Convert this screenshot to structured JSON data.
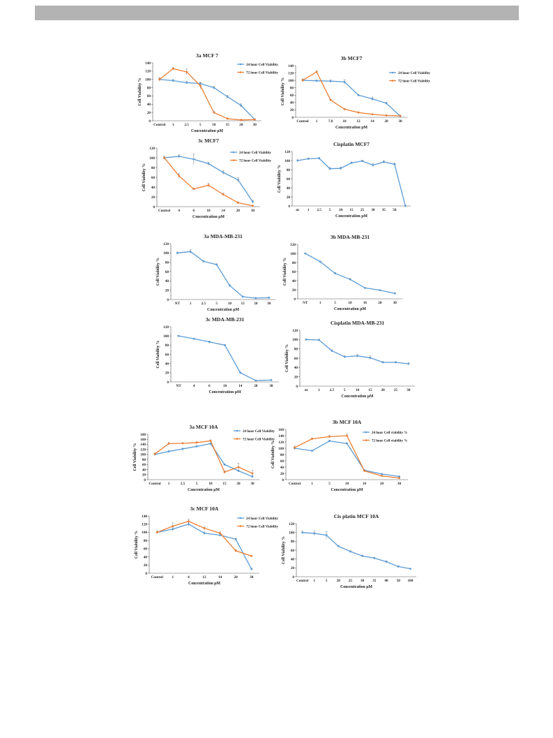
{
  "colors": {
    "blue": "#5b9bd5",
    "orange": "#ed7d31"
  },
  "chart_data": [
    {
      "type": "line",
      "title": "3a MCF 7",
      "xlabel": "Concentration μM",
      "ylabel": "Cell Viability %",
      "ylim": [
        0,
        140
      ],
      "yticks": [
        0,
        20,
        40,
        60,
        80,
        100,
        120,
        140
      ],
      "categories": [
        "Control",
        "1",
        "2.5",
        "5",
        "10",
        "15",
        "20",
        "30"
      ],
      "legend_position": "top-right",
      "series": [
        {
          "name": "24 hour Cell Viability",
          "color": "#5b9bd5",
          "values": [
            100,
            97,
            92,
            90,
            80,
            58,
            37,
            3
          ],
          "errors": [
            3,
            3,
            3,
            3,
            3,
            4,
            4,
            2
          ]
        },
        {
          "name": "72 hour Cell Viability",
          "color": "#ed7d31",
          "values": [
            100,
            126,
            118,
            85,
            20,
            5,
            2,
            3
          ],
          "errors": [
            4,
            3,
            7,
            8,
            3,
            2,
            2,
            2
          ]
        }
      ]
    },
    {
      "type": "line",
      "title": "3b MCF7",
      "xlabel": "Concentration μM",
      "ylabel": "Cell Viability %",
      "ylim": [
        0,
        140
      ],
      "yticks": [
        0,
        20,
        40,
        60,
        80,
        100,
        120,
        140
      ],
      "categories": [
        "Control",
        "1",
        "7.8",
        "10",
        "12",
        "14",
        "20",
        "30"
      ],
      "legend_position": "top-right",
      "series": [
        {
          "name": "24 hour Cell Viability",
          "color": "#5b9bd5",
          "values": [
            100,
            99,
            98,
            96,
            60,
            50,
            38,
            3
          ],
          "errors": [
            3,
            2,
            4,
            6,
            2,
            5,
            3,
            2
          ]
        },
        {
          "name": "72 hour Cell Viability",
          "color": "#ed7d31",
          "values": [
            100,
            123,
            47,
            22,
            13,
            8,
            5,
            4
          ],
          "errors": [
            4,
            3,
            2,
            2,
            2,
            2,
            2,
            2
          ]
        }
      ]
    },
    {
      "type": "line",
      "title": "3c MCF7",
      "xlabel": "Concentration μM",
      "ylabel": "Cell Viability %",
      "ylim": [
        0,
        120
      ],
      "yticks": [
        0,
        20,
        40,
        60,
        80,
        100,
        120
      ],
      "categories": [
        "Control",
        "4",
        "6",
        "10",
        "14",
        "20",
        "30"
      ],
      "legend_position": "right",
      "series": [
        {
          "name": "24 hour Cell Viability",
          "color": "#5b9bd5",
          "values": [
            100,
            103,
            97,
            88,
            70,
            55,
            10
          ],
          "errors": [
            3,
            3,
            11,
            3,
            4,
            4,
            3
          ]
        },
        {
          "name": "72 hour Cell Viability",
          "color": "#ed7d31",
          "values": [
            100,
            63,
            36,
            44,
            25,
            8,
            2
          ],
          "errors": [
            3,
            5,
            2,
            4,
            3,
            2,
            1
          ]
        }
      ]
    },
    {
      "type": "line",
      "title": "Cisplatin MCF7",
      "xlabel": "Concentration μM",
      "ylabel": "Cell Viability %",
      "ylim": [
        0,
        120
      ],
      "yticks": [
        0,
        20,
        40,
        60,
        80,
        100,
        120
      ],
      "categories": [
        "nt",
        "1",
        "2.5",
        "5",
        "10",
        "15",
        "25",
        "30",
        "35",
        "50",
        ""
      ],
      "series": [
        {
          "color": "#5b9bd5",
          "values": [
            100,
            104,
            105,
            82,
            83,
            95,
            99,
            90,
            97,
            92,
            0
          ],
          "errors": [
            2,
            2,
            2,
            3,
            3,
            2,
            2,
            3,
            3,
            3,
            1
          ]
        }
      ]
    },
    {
      "type": "line",
      "title": "3a MDA-MB-231",
      "xlabel": "Concentration μM",
      "ylabel": "Cell Viability %",
      "ylim": [
        0,
        120
      ],
      "yticks": [
        0,
        20,
        40,
        60,
        80,
        100,
        120
      ],
      "categories": [
        "NT",
        "1",
        "2.5",
        "5",
        "10",
        "15",
        "20",
        "30"
      ],
      "series": [
        {
          "color": "#5b9bd5",
          "values": [
            100,
            103,
            82,
            75,
            30,
            6,
            3,
            4
          ],
          "errors": [
            2,
            4,
            2,
            2,
            2,
            1,
            1,
            1
          ]
        }
      ]
    },
    {
      "type": "line",
      "title": "3b MDA-MB-231",
      "xlabel": "Concentration μM",
      "ylabel": "Cell Viability %",
      "ylim": [
        0,
        120
      ],
      "yticks": [
        0,
        20,
        40,
        60,
        80,
        100,
        120
      ],
      "categories": [
        "NT",
        "1",
        "5",
        "10",
        "16",
        "20",
        "30"
      ],
      "series": [
        {
          "color": "#5b9bd5",
          "values": [
            100,
            82,
            56,
            43,
            24,
            19,
            12
          ],
          "errors": [
            1,
            1,
            2,
            2,
            1,
            1,
            1
          ]
        }
      ]
    },
    {
      "type": "line",
      "title": "3c MDA-MB-231",
      "xlabel": "Concentration μM",
      "ylabel": "Cell Viability %",
      "ylim": [
        0,
        120
      ],
      "yticks": [
        0,
        20,
        40,
        60,
        80,
        100,
        120
      ],
      "categories": [
        "NT",
        "4",
        "6",
        "10",
        "14",
        "20",
        "30"
      ],
      "series": [
        {
          "color": "#5b9bd5",
          "values": [
            100,
            94,
            87,
            80,
            20,
            3,
            4
          ],
          "errors": [
            1,
            1,
            2,
            1,
            1,
            1,
            1
          ]
        }
      ]
    },
    {
      "type": "line",
      "title": "Cisplatin MDA-MB-231",
      "xlabel": "Concentration μM",
      "ylabel": "Cell Viability %",
      "ylim": [
        0,
        120
      ],
      "yticks": [
        0,
        20,
        40,
        60,
        80,
        100,
        120
      ],
      "categories": [
        "nt",
        "1",
        "2.5",
        "5",
        "10",
        "15",
        "20",
        "25",
        "30"
      ],
      "series": [
        {
          "color": "#5b9bd5",
          "values": [
            100,
            99,
            76,
            63,
            65,
            61,
            51,
            51,
            48
          ],
          "errors": [
            1,
            2,
            2,
            2,
            3,
            4,
            2,
            2,
            2
          ]
        }
      ]
    },
    {
      "type": "line",
      "title": "3a MCF 10A",
      "xlabel": "Concentration μM",
      "ylabel": "Cell Viability %",
      "ylim": [
        0,
        180
      ],
      "yticks": [
        0,
        20,
        40,
        60,
        80,
        100,
        120,
        140,
        160,
        180
      ],
      "categories": [
        "Control",
        "1",
        "2.5",
        "5",
        "10",
        "15",
        "20",
        "30"
      ],
      "legend_position": "top-right",
      "series": [
        {
          "name": "24 hour Cell Viability",
          "color": "#5b9bd5",
          "values": [
            100,
            112,
            122,
            132,
            143,
            60,
            35,
            12
          ],
          "errors": [
            3,
            3,
            3,
            3,
            3,
            3,
            3,
            3
          ]
        },
        {
          "name": "72 hour Cell Viability",
          "color": "#ed7d31",
          "values": [
            102,
            143,
            144,
            147,
            154,
            30,
            50,
            25
          ],
          "errors": [
            4,
            5,
            3,
            4,
            4,
            5,
            15,
            12
          ]
        }
      ]
    },
    {
      "type": "line",
      "title": "3b MCF 10A",
      "xlabel": "Concentration μM",
      "ylabel": "Cell Viability %",
      "ylim": [
        0,
        160
      ],
      "yticks": [
        0,
        20,
        40,
        60,
        80,
        100,
        120,
        140,
        160
      ],
      "categories": [
        "Control",
        "1",
        "5",
        "10",
        "16",
        "20",
        "30"
      ],
      "legend_position": "top-right",
      "series": [
        {
          "name": "24 hour Cell viability %",
          "color": "#5b9bd5",
          "values": [
            100,
            92,
            123,
            115,
            30,
            18,
            10
          ],
          "errors": [
            3,
            2,
            3,
            3,
            3,
            2,
            2
          ]
        },
        {
          "name": "72 hour Cell viability %",
          "color": "#ed7d31",
          "values": [
            102,
            130,
            137,
            140,
            28,
            12,
            5
          ],
          "errors": [
            6,
            3,
            4,
            5,
            2,
            2,
            2
          ]
        }
      ]
    },
    {
      "type": "line",
      "title": "3c MCF 10A",
      "xlabel": "Concentration μM",
      "ylabel": "Cell Viability %",
      "ylim": [
        0,
        140
      ],
      "yticks": [
        0,
        20,
        40,
        60,
        80,
        100,
        120,
        140
      ],
      "categories": [
        "Control",
        "1",
        "4",
        "12",
        "14",
        "20",
        "30"
      ],
      "legend_position": "top-right",
      "series": [
        {
          "name": "24 hour Cell Viability",
          "color": "#5b9bd5",
          "values": [
            100,
            108,
            120,
            98,
            93,
            83,
            10
          ],
          "errors": [
            3,
            5,
            5,
            3,
            3,
            3,
            2
          ]
        },
        {
          "name": "72 hour Cell Viability",
          "color": "#ed7d31",
          "values": [
            100,
            115,
            127,
            110,
            98,
            55,
            42
          ],
          "errors": [
            3,
            8,
            5,
            3,
            3,
            3,
            2
          ]
        }
      ]
    },
    {
      "type": "line",
      "title": "Cis platin MCF 10A",
      "xlabel": "Concentration μM",
      "ylabel": "Cell Viability %",
      "ylim": [
        0,
        120
      ],
      "yticks": [
        0,
        20,
        40,
        60,
        80,
        100,
        120
      ],
      "categories": [
        "Control",
        "1",
        "5",
        "20",
        "25",
        "30",
        "35",
        "40",
        "50",
        "100"
      ],
      "series": [
        {
          "color": "#5b9bd5",
          "values": [
            100,
            98,
            94,
            69,
            57,
            47,
            42,
            34,
            23,
            18
          ],
          "errors": [
            3,
            5,
            8,
            2,
            2,
            2,
            2,
            2,
            2,
            1
          ]
        }
      ]
    }
  ]
}
